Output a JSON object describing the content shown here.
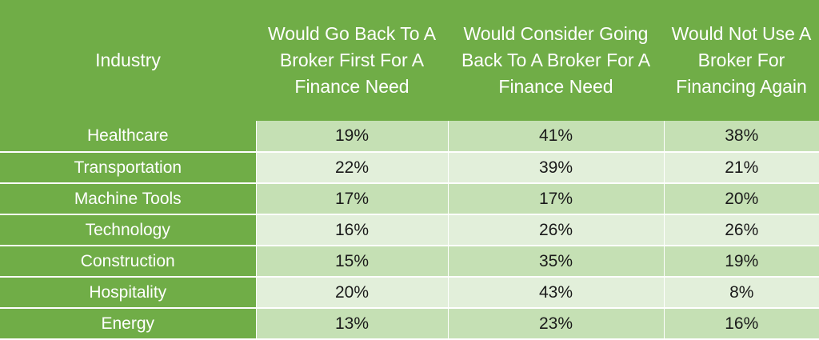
{
  "chart_data": {
    "type": "table",
    "columns": [
      "Industry",
      "Would Go Back To A Broker First For A Finance Need",
      "Would Consider Going Back To A Broker For A Finance Need",
      "Would Not Use A Broker For Financing Again"
    ],
    "rows": [
      {
        "industry": "Healthcare",
        "values": [
          "19%",
          "41%",
          "38%"
        ]
      },
      {
        "industry": "Transportation",
        "values": [
          "22%",
          "39%",
          "21%"
        ]
      },
      {
        "industry": "Machine Tools",
        "values": [
          "17%",
          "17%",
          "20%"
        ]
      },
      {
        "industry": "Technology",
        "values": [
          "16%",
          "26%",
          "26%"
        ]
      },
      {
        "industry": "Construction",
        "values": [
          "15%",
          "35%",
          "19%"
        ]
      },
      {
        "industry": "Hospitality",
        "values": [
          "20%",
          "43%",
          "8%"
        ]
      },
      {
        "industry": "Energy",
        "values": [
          "13%",
          "23%",
          "16%"
        ]
      }
    ]
  },
  "colors": {
    "header_bg": "#70ad47",
    "row_band_dark": "#c5e0b4",
    "row_band_light": "#e2efda"
  }
}
